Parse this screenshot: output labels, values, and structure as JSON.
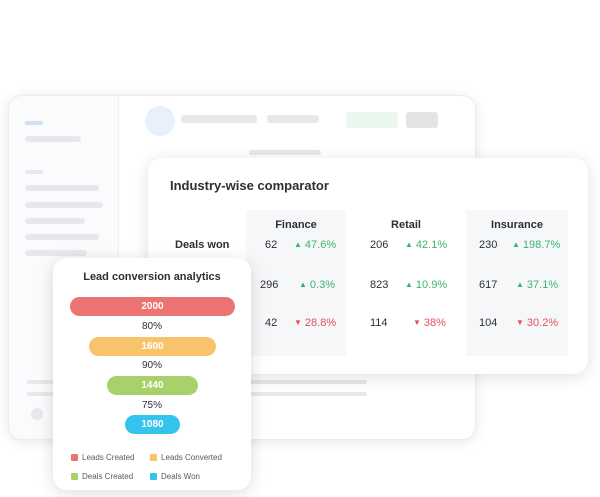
{
  "comparator": {
    "title": "Industry-wise comparator",
    "row_label": "Deals won",
    "columns": [
      {
        "name": "Finance",
        "rows": [
          {
            "value": "62",
            "change": "47.6%",
            "direction": "up"
          },
          {
            "value": "296",
            "change": "0.3%",
            "direction": "up"
          },
          {
            "value": "42",
            "change": "28.8%",
            "direction": "down"
          }
        ]
      },
      {
        "name": "Retail",
        "rows": [
          {
            "value": "206",
            "change": "42.1%",
            "direction": "up"
          },
          {
            "value": "823",
            "change": "10.9%",
            "direction": "up"
          },
          {
            "value": "114",
            "change": "38%",
            "direction": "down"
          }
        ]
      },
      {
        "name": "Insurance",
        "rows": [
          {
            "value": "230",
            "change": "198.7%",
            "direction": "up"
          },
          {
            "value": "617",
            "change": "37.1%",
            "direction": "up"
          },
          {
            "value": "104",
            "change": "30.2%",
            "direction": "down"
          }
        ]
      }
    ],
    "colors": {
      "up": "#3cb371",
      "down": "#e0505b"
    }
  },
  "lead_conversion": {
    "title": "Lead conversion analytics",
    "stages": [
      {
        "value": "2000",
        "color": "#ec7373"
      },
      {
        "value": "1600",
        "color": "#f8c46b"
      },
      {
        "value": "1440",
        "color": "#a8d06b"
      },
      {
        "value": "1080",
        "color": "#34c3ec"
      }
    ],
    "conversion_rates": [
      "80%",
      "90%",
      "75%"
    ],
    "legend": [
      {
        "label": "Leads Created",
        "color": "#ec7373"
      },
      {
        "label": "Leads Converted",
        "color": "#f8c46b"
      },
      {
        "label": "Deals Created",
        "color": "#a8d06b"
      },
      {
        "label": "Deals Won",
        "color": "#34c3ec"
      }
    ]
  }
}
